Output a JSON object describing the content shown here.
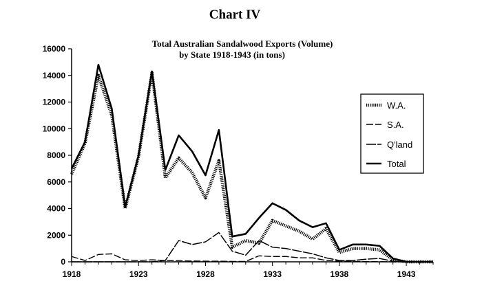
{
  "page_heading": "Chart IV",
  "chart_data": {
    "type": "line",
    "title": "Total Australian Sandalwood Exports (Volume)",
    "subtitle": "by State 1918-1943 (in tons)",
    "xlabel": "",
    "ylabel": "",
    "xlim": [
      1918,
      1945
    ],
    "ylim": [
      0,
      16000
    ],
    "x_ticks": [
      1918,
      1923,
      1928,
      1933,
      1938,
      1943
    ],
    "y_ticks": [
      0,
      2000,
      4000,
      6000,
      8000,
      10000,
      12000,
      14000,
      16000
    ],
    "grid": false,
    "legend_position": "right",
    "x": [
      1918,
      1919,
      1920,
      1921,
      1922,
      1923,
      1924,
      1925,
      1926,
      1927,
      1928,
      1929,
      1930,
      1931,
      1932,
      1933,
      1934,
      1935,
      1936,
      1937,
      1938,
      1939,
      1940,
      1941,
      1942,
      1943,
      1944,
      1945
    ],
    "series": [
      {
        "name": "W.A.",
        "style": "hatched",
        "values": [
          6600,
          8900,
          14000,
          11000,
          4000,
          7900,
          14200,
          6300,
          7800,
          6700,
          4800,
          7600,
          1100,
          1600,
          1400,
          3100,
          2700,
          2300,
          1700,
          2500,
          700,
          1000,
          1000,
          900,
          150,
          0,
          0,
          0
        ]
      },
      {
        "name": "S.A.",
        "style": "long-dash",
        "values": [
          400,
          100,
          550,
          600,
          150,
          100,
          150,
          100,
          80,
          60,
          50,
          50,
          30,
          30,
          450,
          400,
          400,
          300,
          300,
          100,
          50,
          30,
          20,
          10,
          0,
          0,
          0,
          0
        ]
      },
      {
        "name": "Q'land",
        "style": "dash-gap",
        "values": [
          0,
          0,
          0,
          0,
          0,
          0,
          0,
          100,
          1600,
          1300,
          1500,
          2200,
          800,
          500,
          1600,
          1100,
          1000,
          800,
          600,
          300,
          100,
          100,
          200,
          250,
          50,
          0,
          0,
          0
        ]
      },
      {
        "name": "Total",
        "style": "solid-bold",
        "values": [
          7000,
          9000,
          14800,
          11500,
          4100,
          8000,
          14300,
          6900,
          9500,
          8300,
          6500,
          9900,
          1900,
          2100,
          3300,
          4400,
          3900,
          3100,
          2600,
          2900,
          900,
          1300,
          1300,
          1200,
          250,
          0,
          0,
          0
        ]
      }
    ]
  }
}
